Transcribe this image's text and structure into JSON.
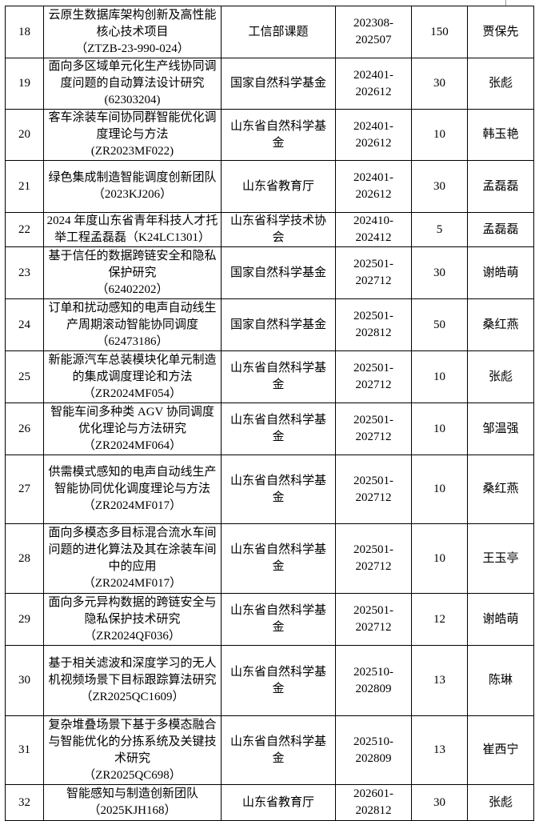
{
  "rows": [
    {
      "no": "18",
      "title": "云原生数据库架构创新及高性能核心技术项目",
      "code": "（ZTZB-23-990-024）",
      "source": "工信部课题",
      "period": "202308-202507",
      "funding": "150",
      "leader": "贾保先"
    },
    {
      "no": "19",
      "title": "面向多区域单元化生产线协同调度问题的自动算法设计研究",
      "code": "(62303204)",
      "source": "国家自然科学基金",
      "period": "202401-202612",
      "funding": "30",
      "leader": "张彪"
    },
    {
      "no": "20",
      "title": "客车涂装车间协同群智能优化调度理论与方法",
      "code": "(ZR2023MF022)",
      "source": "山东省自然科学基金",
      "period": "202401-202612",
      "funding": "10",
      "leader": "韩玉艳"
    },
    {
      "no": "21",
      "title": "绿色集成制造智能调度创新团队",
      "code": "（2023KJ206）",
      "source": "山东省教育厅",
      "period": "202401-202612",
      "funding": "30",
      "leader": "孟磊磊"
    },
    {
      "no": "22",
      "title": "2024 年度山东省青年科技人才托举工程孟磊磊（K24LC1301）",
      "code": "",
      "source": "山东省科学技术协会",
      "period": "202410-202412",
      "funding": "5",
      "leader": "孟磊磊"
    },
    {
      "no": "23",
      "title": "基于信任的数据跨链安全和隐私保护研究",
      "code": "（62402202）",
      "source": "国家自然科学基金",
      "period": "202501-202712",
      "funding": "30",
      "leader": "谢皓萌"
    },
    {
      "no": "24",
      "title": "订单和扰动感知的电声自动线生产周期滚动智能协同调度",
      "code": "（62473186）",
      "source": "国家自然科学基金",
      "period": "202501-202812",
      "funding": "50",
      "leader": "桑红燕"
    },
    {
      "no": "25",
      "title": "新能源汽车总装模块化单元制造的集成调度理论和方法",
      "code": "（ZR2024MF054）",
      "source": "山东省自然科学基金",
      "period": "202501-202712",
      "funding": "10",
      "leader": "张彪"
    },
    {
      "no": "26",
      "title": "智能车间多种类 AGV 协同调度优化理论与方法研究",
      "code": "（ZR2024MF064）",
      "source": "山东省自然科学基金",
      "period": "202501-202712",
      "funding": "10",
      "leader": "邹温强"
    },
    {
      "no": "27",
      "title": "供需模式感知的电声自动线生产智能协同优化调度理论与方法",
      "code": "（ZR2024MF017）",
      "source": "山东省自然科学基金",
      "period": "202501-202712",
      "funding": "10",
      "leader": "桑红燕"
    },
    {
      "no": "28",
      "title": "面向多模态多目标混合流水车间问题的进化算法及其在涂装车间中的应用",
      "code": "（ZR2024MF017）",
      "source": "山东省自然科学基金",
      "period": "202501-202712",
      "funding": "10",
      "leader": "王玉亭"
    },
    {
      "no": "29",
      "title": "面向多元异构数据的跨链安全与隐私保护技术研究",
      "code": "（ZR2024QF036）",
      "source": "山东省自然科学基金",
      "period": "202501-202712",
      "funding": "12",
      "leader": "谢皓萌"
    },
    {
      "no": "30",
      "title": "基于相关滤波和深度学习的无人机视频场景下目标跟踪算法研究",
      "code": "（ZR2025QC1609）",
      "source": "山东省自然科学基金",
      "period": "202510-202809",
      "funding": "13",
      "leader": "陈琳"
    },
    {
      "no": "31",
      "title": "复杂堆叠场景下基于多模态融合与智能优化的分拣系统及关键技术研究",
      "code": "（ZR2025QC698）",
      "source": "山东省自然科学基金",
      "period": "202510-202809",
      "funding": "13",
      "leader": "崔西宁"
    },
    {
      "no": "32",
      "title": "智能感知与制造创新团队",
      "code": "（2025KJH168）",
      "source": "山东省教育厅",
      "period": "202601-202812",
      "funding": "30",
      "leader": "张彪"
    }
  ]
}
